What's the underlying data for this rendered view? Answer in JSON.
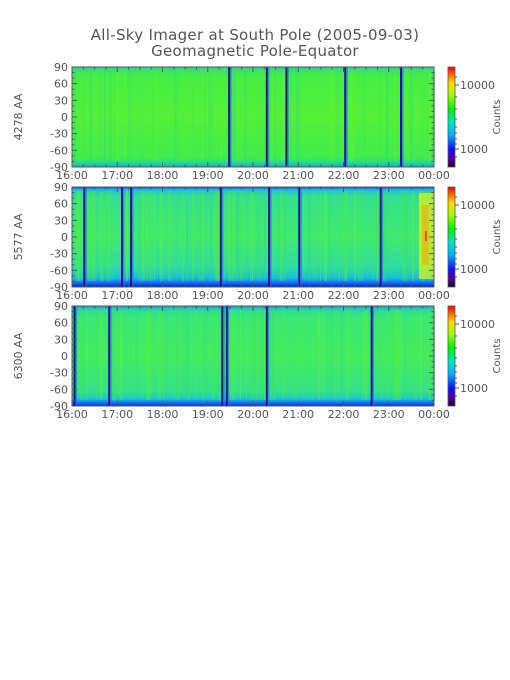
{
  "title": "All-Sky Imager at South Pole (2005-09-03)",
  "subtitle": "Geomagnetic Pole-Equator",
  "colors": {
    "background": "#ffffff",
    "axis": "#555555",
    "text": "#555555"
  },
  "chart_data": [
    {
      "type": "heatmap",
      "ylabel": "4278 AA",
      "colorbar_label": "Counts",
      "colorbar_ticks": [
        "10000",
        "1000"
      ],
      "colorbar_scale": "log",
      "xlim": [
        "16:00",
        "00:00"
      ],
      "x_ticks": [
        "16:00",
        "17:00",
        "18:00",
        "19:00",
        "20:00",
        "21:00",
        "22:00",
        "23:00",
        "00:00"
      ],
      "ylim": [
        -90,
        90
      ],
      "y_ticks": [
        "90",
        "60",
        "30",
        "0",
        "-30",
        "-60",
        "-90"
      ],
      "dominant_level": "green",
      "dark_streak_times": [
        "19:27",
        "20:17",
        "20:43",
        "22:01",
        "23:15"
      ],
      "edge_band_level": "cyan"
    },
    {
      "type": "heatmap",
      "ylabel": "5577 AA",
      "colorbar_label": "Counts",
      "colorbar_ticks": [
        "10000",
        "1000"
      ],
      "colorbar_scale": "log",
      "xlim": [
        "16:00",
        "00:00"
      ],
      "x_ticks": [
        "16:00",
        "17:00",
        "18:00",
        "19:00",
        "20:00",
        "21:00",
        "22:00",
        "23:00",
        "00:00"
      ],
      "ylim": [
        -90,
        90
      ],
      "y_ticks": [
        "90",
        "60",
        "30",
        "0",
        "-30",
        "-60",
        "-90"
      ],
      "dominant_level": "green-cyan",
      "dark_streak_times": [
        "16:15",
        "17:05",
        "17:17",
        "19:16",
        "20:20",
        "21:00",
        "22:48"
      ],
      "bright_region_times": [
        "23:40",
        "00:00"
      ],
      "edge_band_level": "blue"
    },
    {
      "type": "heatmap",
      "ylabel": "6300 AA",
      "colorbar_label": "Counts",
      "colorbar_ticks": [
        "10000",
        "1000"
      ],
      "colorbar_scale": "log",
      "xlim": [
        "16:00",
        "00:00"
      ],
      "x_ticks": [
        "16:00",
        "17:00",
        "18:00",
        "19:00",
        "20:00",
        "21:00",
        "22:00",
        "23:00",
        "00:00"
      ],
      "ylim": [
        -90,
        90
      ],
      "y_ticks": [
        "90",
        "60",
        "30",
        "0",
        "-30",
        "-60",
        "-90"
      ],
      "dominant_level": "green",
      "dark_streak_times": [
        "16:02",
        "16:48",
        "19:18",
        "19:24",
        "20:17",
        "22:36"
      ],
      "edge_band_level": "blue"
    }
  ]
}
